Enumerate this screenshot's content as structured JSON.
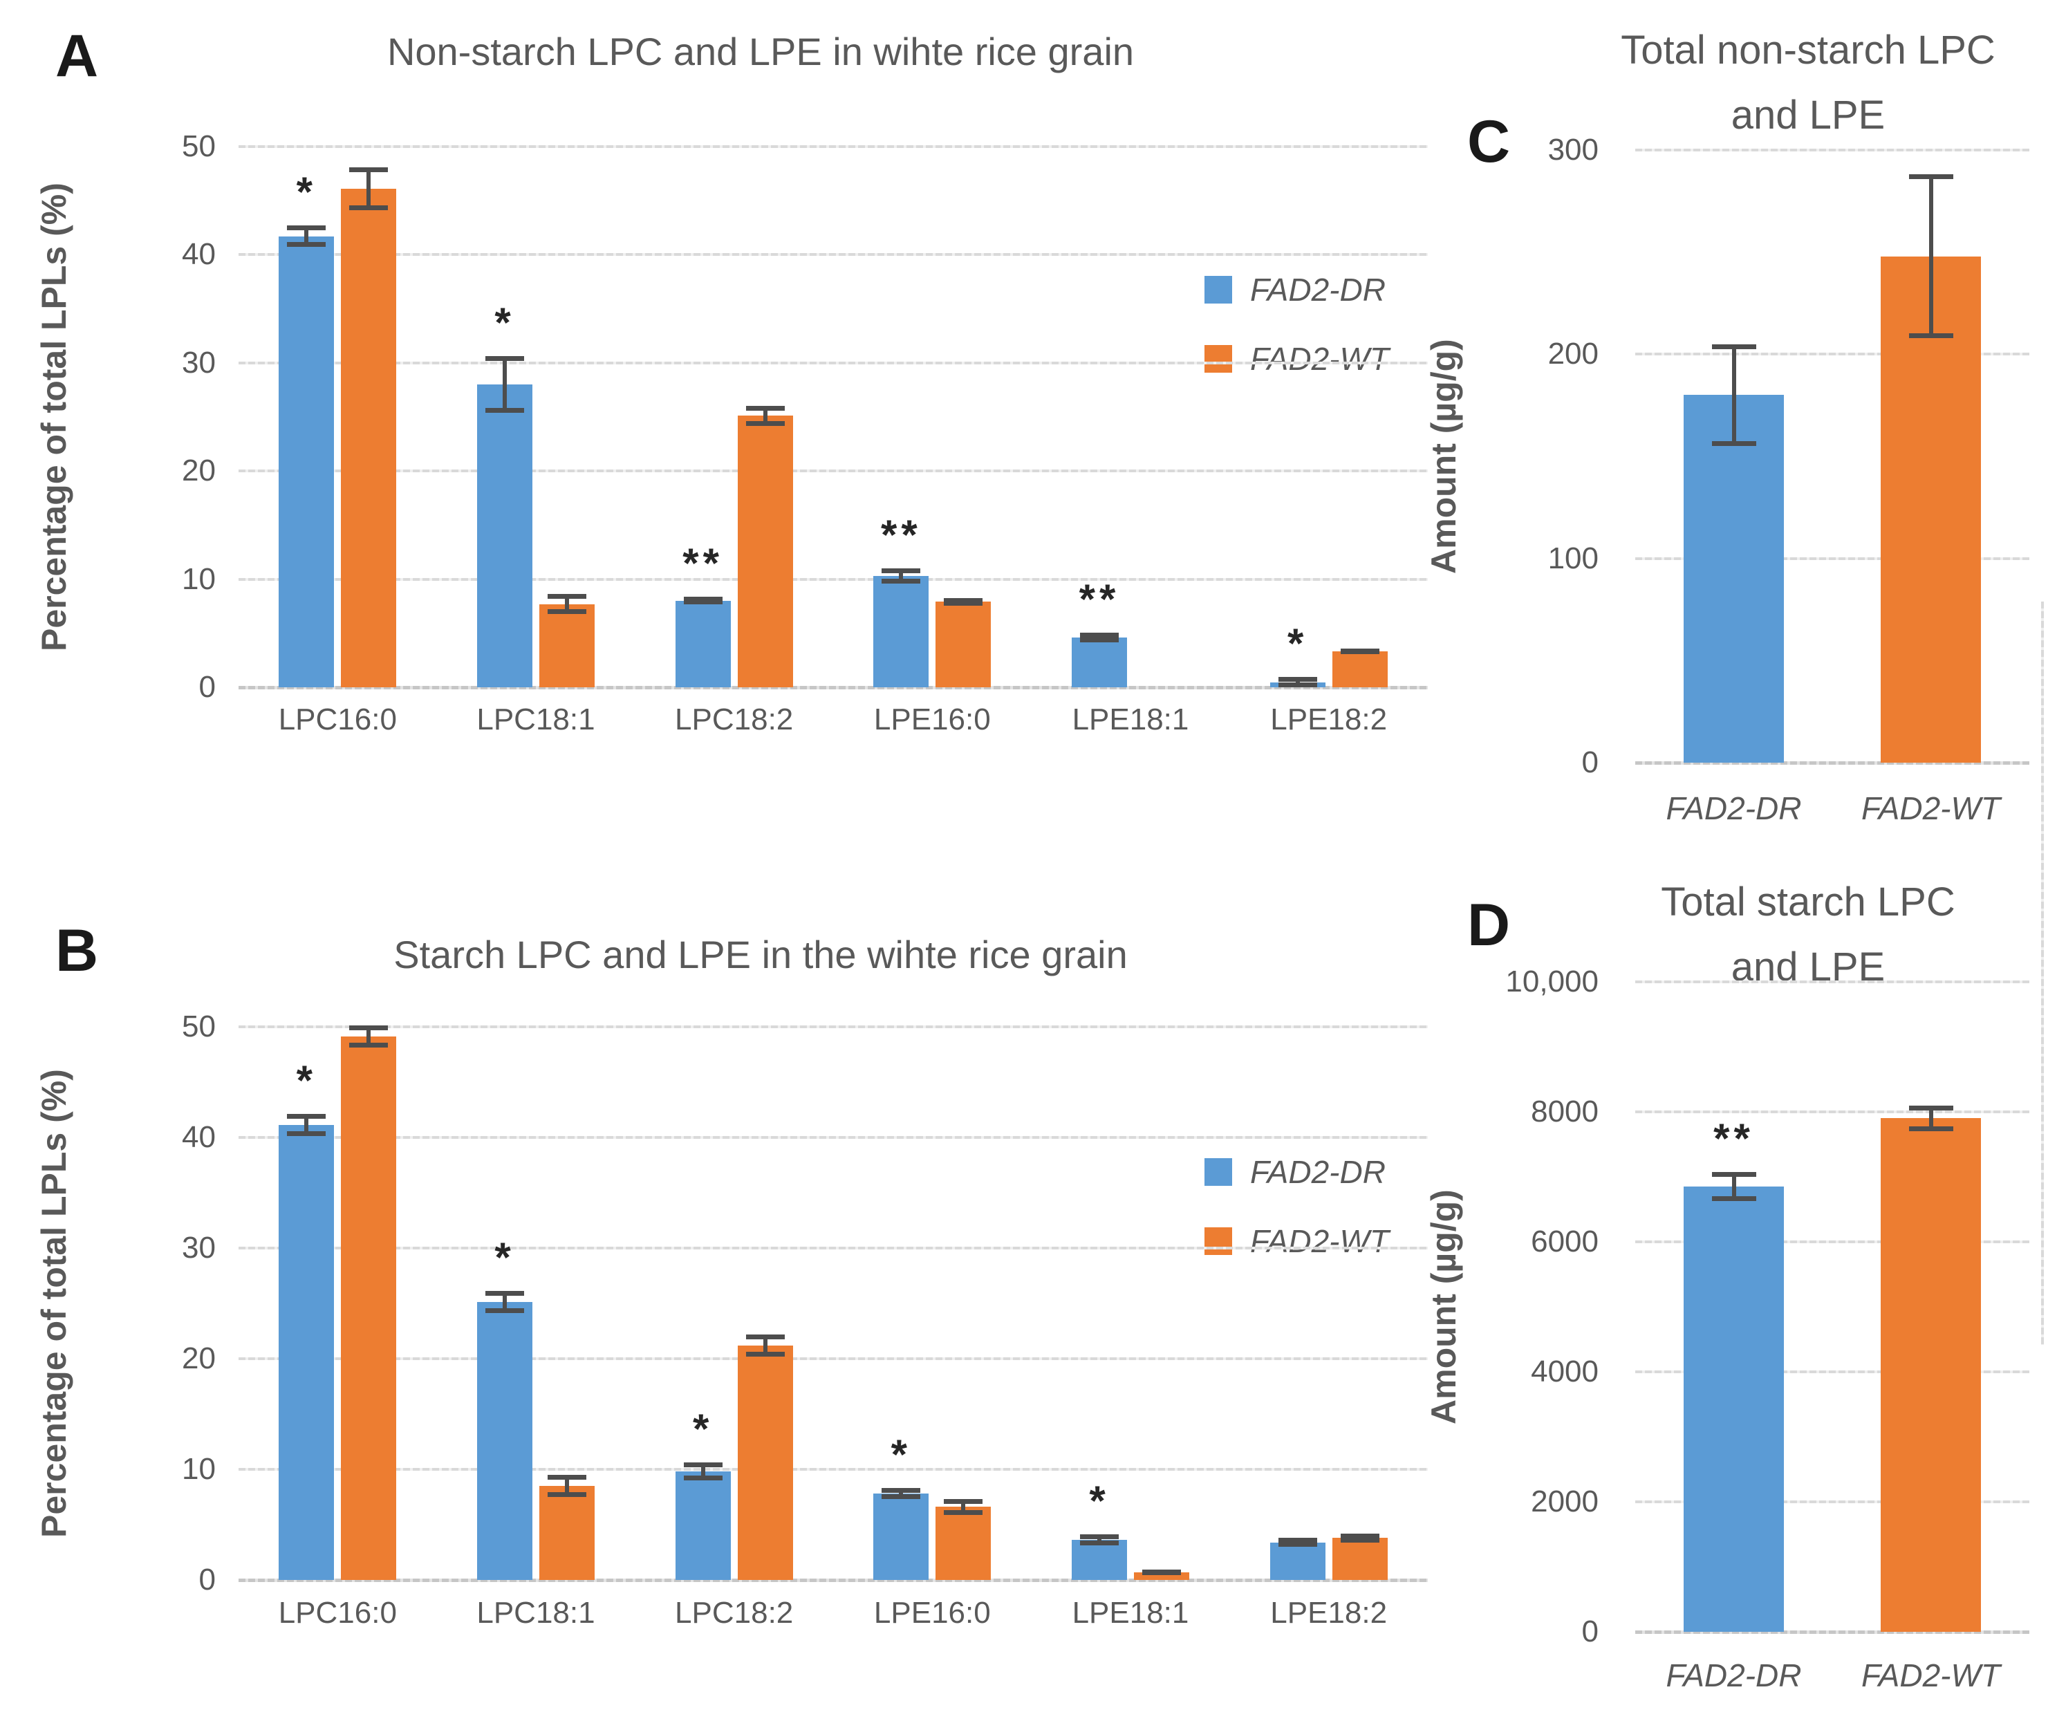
{
  "figure": {
    "background": "#ffffff"
  },
  "colors": {
    "series_blue": "#5B9BD5",
    "series_orange": "#ED7D31",
    "error_bar": "#4d4d4d",
    "gridline": "#d9d9d9",
    "text_gray": "#595959",
    "panel_letter": "#1a1a1a",
    "significance": "#262626"
  },
  "legend": {
    "items": [
      {
        "label": "FAD2-DR",
        "color": "#5B9BD5"
      },
      {
        "label": "FAD2-WT",
        "color": "#ED7D31"
      }
    ]
  },
  "chart_data": [
    {
      "panel_letter": "A",
      "type": "bar",
      "title": "Non-starch LPC and LPE in wihte rice grain",
      "ylabel": "Percentage of total LPLs (%)",
      "xlabel": "",
      "ylim": [
        0,
        50
      ],
      "grid": true,
      "legend_position": "right-inside",
      "yticks": [
        {
          "v": 0,
          "label": "0"
        },
        {
          "v": 10,
          "label": "10"
        },
        {
          "v": 20,
          "label": "20"
        },
        {
          "v": 30,
          "label": "30"
        },
        {
          "v": 40,
          "label": "40"
        },
        {
          "v": 50,
          "label": "50"
        }
      ],
      "categories": [
        "LPC16:0",
        "LPC18:1",
        "LPC18:2",
        "LPE16:0",
        "LPE18:1",
        "LPE18:2"
      ],
      "series": [
        {
          "name": "FAD2-DR",
          "color": "#5B9BD5",
          "values": [
            41.7,
            28.0,
            8.0,
            10.3,
            4.6,
            0.45
          ],
          "errors": [
            1.0,
            2.6,
            0.35,
            0.7,
            0.45,
            0.5
          ],
          "sig": [
            "*",
            "*",
            "**",
            "**",
            "**",
            "*"
          ]
        },
        {
          "name": "FAD2-WT",
          "color": "#ED7D31",
          "values": [
            46.1,
            7.7,
            25.1,
            7.9,
            0,
            3.3
          ],
          "errors": [
            2.0,
            0.9,
            0.9,
            0.35,
            0,
            0.25
          ],
          "sig": [
            "",
            "",
            "",
            "",
            "",
            ""
          ]
        }
      ]
    },
    {
      "panel_letter": "B",
      "type": "bar",
      "title": "Starch LPC and LPE in the wihte rice grain",
      "ylabel": "Percentage of total LPLs (%)",
      "xlabel": "",
      "ylim": [
        0,
        50
      ],
      "grid": true,
      "legend_position": "right-inside",
      "yticks": [
        {
          "v": 0,
          "label": "0"
        },
        {
          "v": 10,
          "label": "10"
        },
        {
          "v": 20,
          "label": "20"
        },
        {
          "v": 30,
          "label": "30"
        },
        {
          "v": 40,
          "label": "40"
        },
        {
          "v": 50,
          "label": "50"
        }
      ],
      "categories": [
        "LPC16:0",
        "LPC18:1",
        "LPC18:2",
        "LPE16:0",
        "LPE18:1",
        "LPE18:2"
      ],
      "series": [
        {
          "name": "FAD2-DR",
          "color": "#5B9BD5",
          "values": [
            41.1,
            25.1,
            9.8,
            7.8,
            3.6,
            3.4
          ],
          "errors": [
            1.0,
            1.0,
            0.8,
            0.5,
            0.5,
            0.4
          ],
          "sig": [
            "*",
            "*",
            "*",
            "*",
            "*",
            ""
          ]
        },
        {
          "name": "FAD2-WT",
          "color": "#ED7D31",
          "values": [
            49.1,
            8.5,
            21.2,
            6.6,
            0.7,
            3.8
          ],
          "errors": [
            1.0,
            1.0,
            1.0,
            0.7,
            0.25,
            0.4
          ],
          "sig": [
            "",
            "",
            "",
            "",
            "",
            ""
          ]
        }
      ]
    },
    {
      "panel_letter": "C",
      "type": "bar",
      "title_lines": [
        "Total non-starch LPC",
        "and LPE"
      ],
      "ylabel": "Amount (µg/g)",
      "xlabel": "",
      "ylim": [
        0,
        300
      ],
      "grid": true,
      "legend_position": "none",
      "yticks": [
        {
          "v": 0,
          "label": "0"
        },
        {
          "v": 100,
          "label": "100"
        },
        {
          "v": 200,
          "label": "200"
        },
        {
          "v": 300,
          "label": "300"
        }
      ],
      "categories": [
        "FAD2-DR",
        "FAD2-WT"
      ],
      "bars": [
        {
          "label": "FAD2-DR",
          "value": 180,
          "error": 25,
          "color": "#5B9BD5",
          "sig": ""
        },
        {
          "label": "FAD2-WT",
          "value": 248,
          "error": 40,
          "color": "#ED7D31",
          "sig": ""
        }
      ]
    },
    {
      "panel_letter": "D",
      "type": "bar",
      "title_lines": [
        "Total starch LPC",
        "and LPE"
      ],
      "ylabel": "Amount (µg/g)",
      "xlabel": "",
      "ylim": [
        0,
        10000
      ],
      "grid": true,
      "legend_position": "none",
      "yticks": [
        {
          "v": 0,
          "label": "0"
        },
        {
          "v": 2000,
          "label": "2000"
        },
        {
          "v": 4000,
          "label": "4000"
        },
        {
          "v": 6000,
          "label": "6000"
        },
        {
          "v": 8000,
          "label": "8000"
        },
        {
          "v": 10000,
          "label": "10,000"
        }
      ],
      "categories": [
        "FAD2-DR",
        "FAD2-WT"
      ],
      "bars": [
        {
          "label": "FAD2-DR",
          "value": 6850,
          "error": 220,
          "color": "#5B9BD5",
          "sig": "**"
        },
        {
          "label": "FAD2-WT",
          "value": 7900,
          "error": 200,
          "color": "#ED7D31",
          "sig": ""
        }
      ]
    }
  ]
}
